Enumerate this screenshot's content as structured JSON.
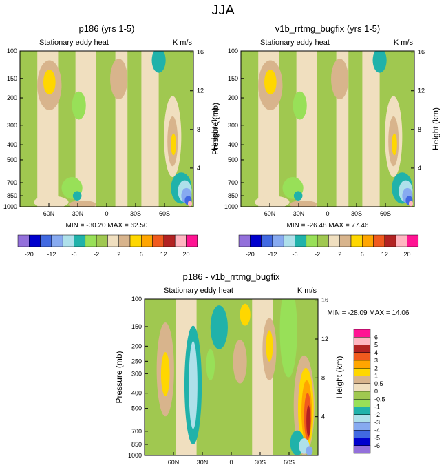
{
  "page_title": "JJA",
  "colors": {
    "pos_shades": [
      "#f0dfbf",
      "#d8b48c",
      "#ffd700",
      "#ffa500",
      "#f05a1e",
      "#b22222",
      "#ffb6c1",
      "#ff1493"
    ],
    "neg_shades": [
      "#a0c850",
      "#98e058",
      "#20b2aa",
      "#aee0ea",
      "#87aaf0",
      "#4169e1",
      "#0000cd",
      "#9370db"
    ],
    "frame": "#000000"
  },
  "chart_data": [
    {
      "type": "heatmap",
      "id": "p186",
      "title": "p186 (yrs 1-5)",
      "subtitle_left": "Stationary eddy heat",
      "subtitle_right": "K m/s",
      "ylabel": "Pressure (mb)",
      "y2label": "Height (km)",
      "yticks": [
        "100",
        "150",
        "200",
        "300",
        "400",
        "500",
        "700",
        "850",
        "1000"
      ],
      "y2ticks": [
        "16",
        "12",
        "8",
        "4"
      ],
      "xticks": [
        "60N",
        "30N",
        "0",
        "30S",
        "60S"
      ],
      "ylim": [
        1000,
        100
      ],
      "stats": "MIN = -30.20  MAX =  62.50",
      "colorbar_labels": [
        "-20",
        "-12",
        "-6",
        "-2",
        "2",
        "6",
        "12",
        "20"
      ],
      "colorbar_levels": 15
    },
    {
      "type": "heatmap",
      "id": "v1b",
      "title": "v1b_rrtmg_bugfix (yrs 1-5)",
      "subtitle_left": "Stationary eddy heat",
      "subtitle_right": "K m/s",
      "ylabel": "Pressure (mb)",
      "y2label": "Height (km)",
      "yticks": [
        "100",
        "150",
        "200",
        "300",
        "400",
        "500",
        "700",
        "850",
        "1000"
      ],
      "y2ticks": [
        "16",
        "12",
        "8",
        "4"
      ],
      "xticks": [
        "60N",
        "30N",
        "0",
        "30S",
        "60S"
      ],
      "ylim": [
        1000,
        100
      ],
      "stats": "MIN = -26.48  MAX =  77.46",
      "colorbar_labels": [
        "-20",
        "-12",
        "-6",
        "-2",
        "2",
        "6",
        "12",
        "20"
      ],
      "colorbar_levels": 15
    },
    {
      "type": "heatmap",
      "id": "diff",
      "title": "p186 - v1b_rrtmg_bugfix",
      "subtitle_left": "Stationary eddy heat",
      "subtitle_right": "K m/s",
      "ylabel": "Pressure (mb)",
      "y2label": "Height (km)",
      "yticks": [
        "100",
        "150",
        "200",
        "250",
        "300",
        "400",
        "500",
        "700",
        "850",
        "1000"
      ],
      "y2ticks": [
        "16",
        "12",
        "8",
        "4"
      ],
      "xticks": [
        "60N",
        "30N",
        "0",
        "30S",
        "60S"
      ],
      "ylim": [
        1000,
        100
      ],
      "stats": "MIN = -28.09  MAX =  14.06",
      "colorbar_labels": [
        "6",
        "5",
        "4",
        "3",
        "2",
        "1",
        "0.5",
        "0",
        "-0.5",
        "-1",
        "-2",
        "-3",
        "-4",
        "-5",
        "-6"
      ],
      "colorbar_levels": 15
    }
  ]
}
